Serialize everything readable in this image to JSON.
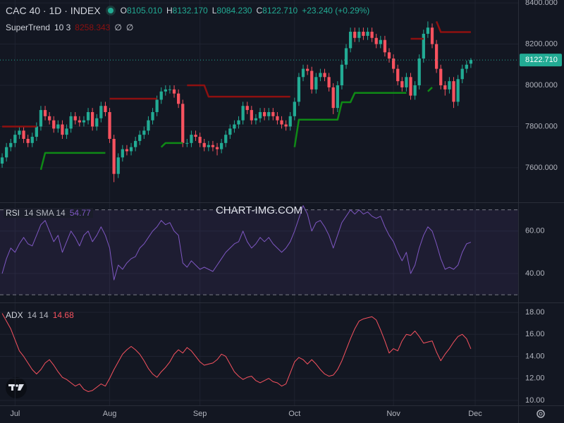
{
  "watermark": "CHART-IMG.COM",
  "chart_data": [
    {
      "type": "candlestick",
      "title": "CAC 40 · 1D · INDEX",
      "ohlc_labels": [
        "O",
        "H",
        "L",
        "C"
      ],
      "header_values": [
        "8105.010",
        "8132.170",
        "8084.230",
        "8122.710"
      ],
      "change": "+23.240 (+0.29%)",
      "indicator": "SuperTrend",
      "indicator_params": "10 3",
      "indicator_icons": [
        "∅",
        "∅"
      ],
      "up_color": "#22ab94",
      "down_color": "#f7525f",
      "open": [
        7620,
        7650,
        7700,
        7720,
        7760,
        7780,
        7740,
        7720,
        7750,
        7800,
        7880,
        7850,
        7830,
        7790,
        7810,
        7760,
        7790,
        7850,
        7830,
        7820,
        7830,
        7870,
        7800,
        7840,
        7900,
        7870,
        7740,
        7570,
        7650,
        7690,
        7680,
        7700,
        7730,
        7760,
        7780,
        7830,
        7870,
        7930,
        7970,
        7980,
        7980,
        7960,
        7910,
        7720,
        7720,
        7760,
        7750,
        7720,
        7700,
        7710,
        7700,
        7690,
        7720,
        7760,
        7790,
        7810,
        7830,
        7900,
        7880,
        7830,
        7840,
        7870,
        7850,
        7870,
        7850,
        7830,
        7810,
        7800,
        7850,
        7920,
        8040,
        8080,
        8070,
        7980,
        8040,
        8060,
        8040,
        7990,
        7890,
        8000,
        8100,
        8180,
        8260,
        8230,
        8260,
        8240,
        8260,
        8230,
        8200,
        8220,
        8160,
        8130,
        8080,
        8020,
        7990,
        8040,
        7950,
        8000,
        8130,
        8250,
        8280,
        8200,
        8080,
        8000,
        7980,
        8020,
        7920,
        8030,
        8080,
        8105.01
      ],
      "high": [
        7670,
        7720,
        7740,
        7780,
        7800,
        7800,
        7760,
        7770,
        7820,
        7900,
        7900,
        7870,
        7850,
        7830,
        7830,
        7810,
        7870,
        7870,
        7850,
        7850,
        7890,
        7890,
        7860,
        7920,
        7920,
        7890,
        7760,
        7670,
        7710,
        7710,
        7720,
        7750,
        7780,
        7800,
        7850,
        7890,
        7950,
        7990,
        8000,
        8000,
        8000,
        7980,
        7930,
        7740,
        7780,
        7780,
        7770,
        7740,
        7730,
        7730,
        7720,
        7740,
        7780,
        7810,
        7830,
        7850,
        7920,
        7920,
        7900,
        7860,
        7890,
        7890,
        7890,
        7890,
        7870,
        7850,
        7830,
        7870,
        7940,
        8060,
        8100,
        8100,
        8090,
        8060,
        8080,
        8080,
        8060,
        8010,
        8020,
        8120,
        8200,
        8280,
        8280,
        8280,
        8280,
        8280,
        8280,
        8250,
        8240,
        8240,
        8180,
        8150,
        8100,
        8040,
        8060,
        8060,
        8020,
        8150,
        8270,
        8310,
        8300,
        8220,
        8100,
        8020,
        8040,
        8040,
        8050,
        8100,
        8120,
        8132.17
      ],
      "low": [
        7600,
        7630,
        7680,
        7700,
        7740,
        7720,
        7700,
        7700,
        7730,
        7780,
        7830,
        7810,
        7770,
        7770,
        7740,
        7740,
        7770,
        7810,
        7800,
        7800,
        7810,
        7780,
        7780,
        7820,
        7850,
        7720,
        7530,
        7550,
        7630,
        7660,
        7660,
        7680,
        7710,
        7740,
        7760,
        7810,
        7850,
        7910,
        7950,
        7960,
        7940,
        7890,
        7700,
        7700,
        7700,
        7730,
        7700,
        7680,
        7680,
        7680,
        7660,
        7670,
        7700,
        7740,
        7770,
        7790,
        7810,
        7860,
        7810,
        7810,
        7820,
        7830,
        7830,
        7830,
        7810,
        7790,
        7780,
        7780,
        7830,
        7900,
        8020,
        8050,
        7960,
        7960,
        8020,
        8020,
        7970,
        7860,
        7870,
        7980,
        8080,
        8160,
        8210,
        8210,
        8220,
        8220,
        8210,
        8180,
        8180,
        8140,
        8110,
        8060,
        8000,
        7970,
        7970,
        7930,
        7930,
        7980,
        8110,
        8230,
        8180,
        8060,
        7980,
        7950,
        7960,
        7890,
        7900,
        8010,
        8060,
        8084.23
      ],
      "close": [
        7650,
        7700,
        7720,
        7760,
        7780,
        7740,
        7720,
        7750,
        7800,
        7880,
        7850,
        7830,
        7790,
        7810,
        7760,
        7790,
        7850,
        7830,
        7820,
        7830,
        7870,
        7800,
        7840,
        7900,
        7870,
        7740,
        7570,
        7650,
        7690,
        7680,
        7700,
        7730,
        7760,
        7780,
        7830,
        7870,
        7930,
        7970,
        7980,
        7980,
        7960,
        7910,
        7720,
        7720,
        7760,
        7750,
        7720,
        7700,
        7710,
        7700,
        7690,
        7720,
        7760,
        7790,
        7810,
        7830,
        7900,
        7880,
        7830,
        7840,
        7870,
        7850,
        7870,
        7850,
        7830,
        7810,
        7800,
        7850,
        7920,
        8040,
        8080,
        8070,
        7980,
        8040,
        8060,
        8040,
        7990,
        7890,
        8000,
        8100,
        8180,
        8260,
        8230,
        8260,
        8240,
        8260,
        8230,
        8200,
        8220,
        8160,
        8130,
        8080,
        8020,
        7990,
        8040,
        7950,
        8000,
        8130,
        8250,
        8280,
        8200,
        8080,
        8000,
        7980,
        8020,
        7920,
        8030,
        8080,
        8100,
        8122.71
      ],
      "series": [
        {
          "color": "#0f8a16",
          "values": [
            null,
            null,
            null,
            null,
            null,
            null,
            null,
            null,
            null,
            7590,
            7672,
            7672,
            7672,
            7672,
            7672,
            7672,
            7672,
            7672,
            7672,
            7672,
            7672,
            7672,
            7672,
            7672,
            7672,
            null,
            null,
            null,
            null,
            null,
            null,
            null,
            null,
            null,
            null,
            null,
            null,
            7700,
            7720,
            7720,
            7720,
            7720,
            7720,
            null,
            null,
            null,
            null,
            null,
            null,
            null,
            null,
            null,
            null,
            null,
            null,
            null,
            null,
            null,
            null,
            null,
            null,
            null,
            null,
            null,
            null,
            null,
            null,
            null,
            7700,
            7833,
            7833,
            7833,
            7833,
            7833,
            7833,
            7833,
            7833,
            7833,
            7833,
            7918,
            7918,
            7918,
            7963,
            7963,
            7963,
            7963,
            7963,
            7963,
            7963,
            7963,
            7963,
            7963,
            7963,
            7963,
            7963,
            null,
            null,
            null,
            null,
            7970,
            7990,
            null,
            null,
            null,
            null,
            null,
            null,
            null,
            null,
            null
          ]
        },
        {
          "color": "#8e1010",
          "values": [
            7800,
            7800,
            7800,
            7800,
            7800,
            7800,
            7800,
            7800,
            7800,
            null,
            null,
            null,
            null,
            null,
            null,
            null,
            null,
            null,
            null,
            null,
            null,
            null,
            null,
            null,
            null,
            7935,
            7935,
            7935,
            7935,
            7935,
            7935,
            7935,
            7935,
            7935,
            7935,
            7935,
            7935,
            null,
            null,
            null,
            null,
            null,
            null,
            8000,
            8000,
            8000,
            8000,
            8000,
            7945,
            7945,
            7945,
            7945,
            7945,
            7945,
            7945,
            7945,
            7945,
            7945,
            7945,
            7945,
            7945,
            7945,
            7945,
            7945,
            7945,
            7945,
            7945,
            7945,
            null,
            null,
            null,
            null,
            null,
            null,
            null,
            null,
            null,
            null,
            null,
            null,
            null,
            null,
            null,
            null,
            null,
            null,
            null,
            null,
            null,
            null,
            null,
            null,
            null,
            null,
            null,
            8226,
            8226,
            8226,
            8226,
            null,
            null,
            8310,
            8258.343,
            8258.343,
            8258.343,
            8258.343,
            8258.343,
            8258.343,
            8258.343,
            8258.343
          ]
        }
      ],
      "xlim": [
        -0.5,
        120
      ],
      "xticks": [
        {
          "value": 3,
          "label": "Jul"
        },
        {
          "value": 25,
          "label": "Aug"
        },
        {
          "value": 46,
          "label": "Sep"
        },
        {
          "value": 68,
          "label": "Oct"
        },
        {
          "value": 91,
          "label": "Nov"
        },
        {
          "value": 110,
          "label": "Dec"
        }
      ],
      "ylim": [
        7432,
        8414
      ],
      "yticks": [
        {
          "value": 7600,
          "label": "7600.000"
        },
        {
          "value": 7800,
          "label": "7800.000"
        },
        {
          "value": 8000,
          "label": "8000.000"
        },
        {
          "value": 8200,
          "label": "8200.000"
        },
        {
          "value": 8400,
          "label": "8400.000"
        }
      ],
      "grid": true
    },
    {
      "type": "line",
      "title": "RSI",
      "params": "14 SMA 14",
      "color": "#7e57c2",
      "values": [
        40,
        47,
        52,
        50,
        54,
        57,
        54,
        53,
        58,
        63,
        65,
        60,
        55,
        58,
        50,
        55,
        60,
        57,
        53,
        58,
        60,
        55,
        58,
        62,
        58,
        52,
        37,
        44,
        42,
        45,
        47,
        48,
        52,
        54,
        57,
        60,
        62,
        65,
        63,
        64,
        60,
        58,
        45,
        43,
        46,
        44,
        42,
        43,
        42,
        41,
        44,
        47,
        50,
        52,
        54,
        55,
        60,
        55,
        52,
        54,
        57,
        55,
        57,
        54,
        52,
        50,
        52,
        55,
        60,
        66,
        72,
        68,
        60,
        64,
        65,
        62,
        58,
        52,
        58,
        64,
        67,
        70,
        68,
        70,
        68,
        69,
        67,
        66,
        67,
        62,
        58,
        55,
        50,
        46,
        50,
        40,
        44,
        52,
        58,
        62,
        60,
        54,
        47,
        42,
        43,
        42,
        44,
        50,
        54,
        54.77
      ],
      "bands": [
        70,
        30
      ],
      "ylim": [
        26.4,
        73.2
      ],
      "yticks": [
        {
          "value": 40,
          "label": "40.00"
        },
        {
          "value": 60,
          "label": "60.00"
        }
      ],
      "grid": true
    },
    {
      "type": "line",
      "title": "ADX",
      "params": "14 14",
      "color": "#f7525f",
      "values": [
        17.9,
        17.2,
        16.5,
        15.5,
        14.5,
        14,
        13.4,
        12.8,
        12.4,
        12.8,
        13.4,
        13.7,
        13.2,
        12.6,
        12.1,
        11.9,
        11.6,
        11.3,
        11.5,
        11,
        10.8,
        10.9,
        11.2,
        11.5,
        11.3,
        12,
        12.8,
        13.5,
        14.2,
        14.6,
        14.9,
        14.6,
        14.2,
        13.6,
        12.9,
        12.4,
        12.1,
        12.6,
        13,
        13.5,
        14.2,
        14.6,
        14.3,
        14.8,
        14.5,
        14,
        13.5,
        13.2,
        13.3,
        13.4,
        13.7,
        14.2,
        14,
        13.3,
        12.6,
        12.2,
        11.9,
        12.1,
        12.2,
        11.8,
        11.6,
        11.8,
        12,
        11.7,
        11.6,
        11.3,
        11.5,
        12.5,
        13.5,
        13.9,
        13.7,
        13.3,
        13.7,
        13.3,
        12.8,
        12.4,
        12.2,
        12.3,
        12.8,
        13.6,
        14.6,
        15.6,
        16.5,
        17.2,
        17.4,
        17.5,
        17.6,
        17.3,
        16.4,
        15.4,
        14.3,
        14.7,
        14.5,
        15.4,
        16,
        15.9,
        16.3,
        15.8,
        15.2,
        15.3,
        15.4,
        14.4,
        13.6,
        14.2,
        14.7,
        15.3,
        15.8,
        16,
        15.6,
        14.68
      ],
      "ylim": [
        9.55,
        18.83
      ],
      "yticks": [
        {
          "value": 10,
          "label": "10.00"
        },
        {
          "value": 12,
          "label": "12.00"
        },
        {
          "value": 14,
          "label": "14.00"
        },
        {
          "value": 16,
          "label": "16.00"
        },
        {
          "value": 18,
          "label": "18.00"
        }
      ],
      "grid": true
    }
  ]
}
